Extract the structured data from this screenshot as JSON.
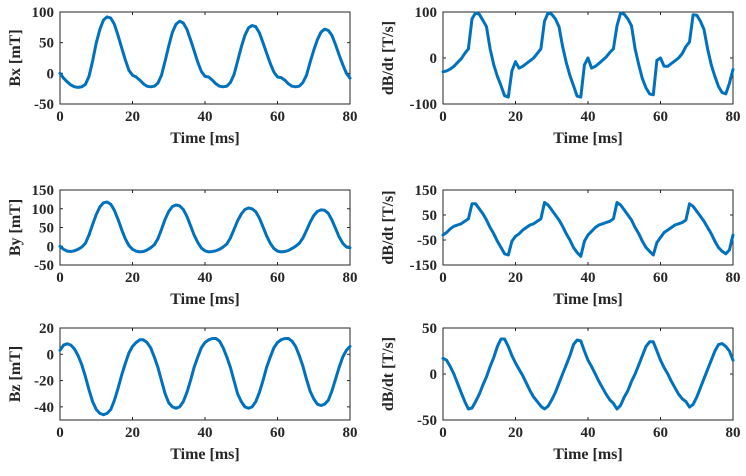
{
  "chart_data": [
    {
      "type": "line",
      "ylabel": "Bx [mT]",
      "xlabel": "Time [ms]",
      "xlim": [
        0,
        80
      ],
      "ylim": [
        -50,
        100
      ],
      "xticks": [
        0,
        20,
        40,
        60,
        80
      ],
      "yticks": [
        -50,
        0,
        50,
        100
      ],
      "color": "#0072BD",
      "x_step": 1,
      "values": [
        0,
        -8,
        -14,
        -19,
        -22,
        -23,
        -22,
        -18,
        -5,
        20,
        50,
        72,
        87,
        92,
        90,
        80,
        62,
        42,
        22,
        5,
        -3,
        -6,
        -11,
        -17,
        -21,
        -22,
        -21,
        -16,
        -3,
        20,
        45,
        67,
        80,
        85,
        82,
        72,
        55,
        37,
        18,
        3,
        -5,
        -6,
        -11,
        -17,
        -21,
        -22,
        -21,
        -15,
        -2,
        20,
        43,
        62,
        74,
        78,
        76,
        66,
        50,
        33,
        16,
        2,
        -6,
        -7,
        -11,
        -17,
        -21,
        -22,
        -21,
        -15,
        -3,
        18,
        38,
        55,
        67,
        72,
        70,
        62,
        47,
        30,
        14,
        0,
        -8
      ]
    },
    {
      "type": "line",
      "ylabel": "dB/dt [T/s]",
      "xlabel": "Time [ms]",
      "xlim": [
        0,
        80
      ],
      "ylim": [
        -100,
        100
      ],
      "xticks": [
        0,
        20,
        40,
        60,
        80
      ],
      "yticks": [
        -100,
        0,
        100
      ],
      "color": "#0072BD",
      "x_step": 1,
      "values": [
        -30,
        -28,
        -24,
        -18,
        -10,
        -2,
        10,
        20,
        85,
        98,
        95,
        82,
        68,
        20,
        -15,
        -40,
        -60,
        -82,
        -85,
        -28,
        -8,
        -22,
        -18,
        -12,
        -6,
        0,
        10,
        20,
        80,
        98,
        95,
        85,
        68,
        25,
        -10,
        -38,
        -60,
        -83,
        -85,
        -15,
        0,
        -22,
        -18,
        -12,
        -5,
        2,
        12,
        20,
        70,
        98,
        95,
        85,
        70,
        20,
        -15,
        -45,
        -65,
        -78,
        -80,
        -5,
        0,
        -18,
        -18,
        -12,
        -6,
        0,
        10,
        25,
        35,
        94,
        93,
        80,
        62,
        20,
        -15,
        -40,
        -62,
        -75,
        -78,
        -55,
        -25
      ]
    },
    {
      "type": "line",
      "ylabel": "By [mT]",
      "xlabel": "Time [ms]",
      "xlim": [
        0,
        80
      ],
      "ylim": [
        -50,
        150
      ],
      "xticks": [
        0,
        20,
        40,
        60,
        80
      ],
      "yticks": [
        -50,
        0,
        50,
        100,
        150
      ],
      "color": "#0072BD",
      "x_step": 1,
      "values": [
        0,
        -8,
        -13,
        -14,
        -12,
        -8,
        -2,
        8,
        30,
        58,
        85,
        105,
        116,
        118,
        112,
        96,
        72,
        45,
        20,
        2,
        -8,
        -13,
        -15,
        -14,
        -10,
        -4,
        4,
        20,
        45,
        72,
        93,
        106,
        110,
        108,
        98,
        80,
        55,
        30,
        10,
        -5,
        -12,
        -15,
        -14,
        -12,
        -8,
        -2,
        6,
        22,
        45,
        68,
        86,
        98,
        102,
        100,
        92,
        75,
        52,
        28,
        8,
        -6,
        -13,
        -15,
        -14,
        -11,
        -6,
        0,
        8,
        22,
        42,
        64,
        82,
        93,
        97,
        96,
        88,
        70,
        48,
        25,
        8,
        -2,
        -4
      ]
    },
    {
      "type": "line",
      "ylabel": "dB/dt [T/s]",
      "xlabel": "Time [ms]",
      "xlim": [
        0,
        80
      ],
      "ylim": [
        -150,
        150
      ],
      "xticks": [
        0,
        20,
        40,
        60,
        80
      ],
      "yticks": [
        -150,
        -50,
        50,
        150
      ],
      "color": "#0072BD",
      "x_step": 1,
      "values": [
        -30,
        -20,
        -5,
        5,
        10,
        15,
        25,
        35,
        95,
        95,
        75,
        55,
        30,
        0,
        -25,
        -55,
        -80,
        -105,
        -110,
        -55,
        -35,
        -25,
        -10,
        0,
        10,
        15,
        25,
        35,
        100,
        90,
        70,
        50,
        30,
        5,
        -25,
        -50,
        -80,
        -100,
        -115,
        -55,
        -30,
        -15,
        0,
        10,
        15,
        20,
        25,
        35,
        100,
        90,
        70,
        50,
        30,
        0,
        -25,
        -55,
        -80,
        -95,
        -110,
        -60,
        -40,
        -20,
        -10,
        0,
        10,
        15,
        20,
        30,
        95,
        85,
        65,
        45,
        25,
        0,
        -25,
        -55,
        -80,
        -95,
        -105,
        -90,
        -30
      ]
    },
    {
      "type": "line",
      "ylabel": "Bz [mT]",
      "xlabel": "Time [ms]",
      "xlim": [
        0,
        80
      ],
      "ylim": [
        -50,
        20
      ],
      "xticks": [
        0,
        20,
        40,
        60,
        80
      ],
      "yticks": [
        -40,
        -20,
        0,
        20
      ],
      "color": "#0072BD",
      "x_step": 1,
      "values": [
        3,
        7,
        8,
        7,
        4,
        -1,
        -8,
        -17,
        -27,
        -36,
        -42,
        -45,
        -46,
        -45,
        -42,
        -35,
        -26,
        -16,
        -7,
        1,
        6,
        9,
        11,
        11,
        9,
        5,
        -2,
        -10,
        -20,
        -30,
        -37,
        -40,
        -41,
        -40,
        -36,
        -29,
        -20,
        -10,
        -2,
        5,
        9,
        11,
        12,
        12,
        10,
        5,
        -2,
        -10,
        -20,
        -30,
        -36,
        -40,
        -41,
        -40,
        -36,
        -29,
        -20,
        -10,
        -2,
        5,
        9,
        11,
        12,
        12,
        10,
        6,
        -1,
        -9,
        -19,
        -28,
        -34,
        -38,
        -39,
        -38,
        -35,
        -28,
        -19,
        -10,
        -2,
        3,
        6
      ]
    },
    {
      "type": "line",
      "ylabel": "dB/dt [T/s]",
      "xlabel": "Time [ms]",
      "xlim": [
        0,
        80
      ],
      "ylim": [
        -50,
        50
      ],
      "xticks": [
        0,
        20,
        40,
        60,
        80
      ],
      "yticks": [
        -50,
        0,
        50
      ],
      "color": "#0072BD",
      "x_step": 1,
      "values": [
        17,
        15,
        8,
        0,
        -10,
        -20,
        -30,
        -38,
        -37,
        -30,
        -22,
        -12,
        -3,
        8,
        18,
        30,
        38,
        38,
        30,
        20,
        12,
        5,
        -2,
        -10,
        -18,
        -25,
        -30,
        -35,
        -38,
        -35,
        -28,
        -20,
        -10,
        0,
        10,
        20,
        32,
        37,
        36,
        25,
        15,
        8,
        0,
        -8,
        -15,
        -22,
        -28,
        -32,
        -38,
        -34,
        -25,
        -18,
        -8,
        0,
        10,
        20,
        30,
        35,
        35,
        25,
        15,
        7,
        0,
        -8,
        -15,
        -22,
        -27,
        -30,
        -36,
        -33,
        -25,
        -15,
        -5,
        5,
        15,
        25,
        32,
        33,
        30,
        25,
        15
      ]
    }
  ]
}
